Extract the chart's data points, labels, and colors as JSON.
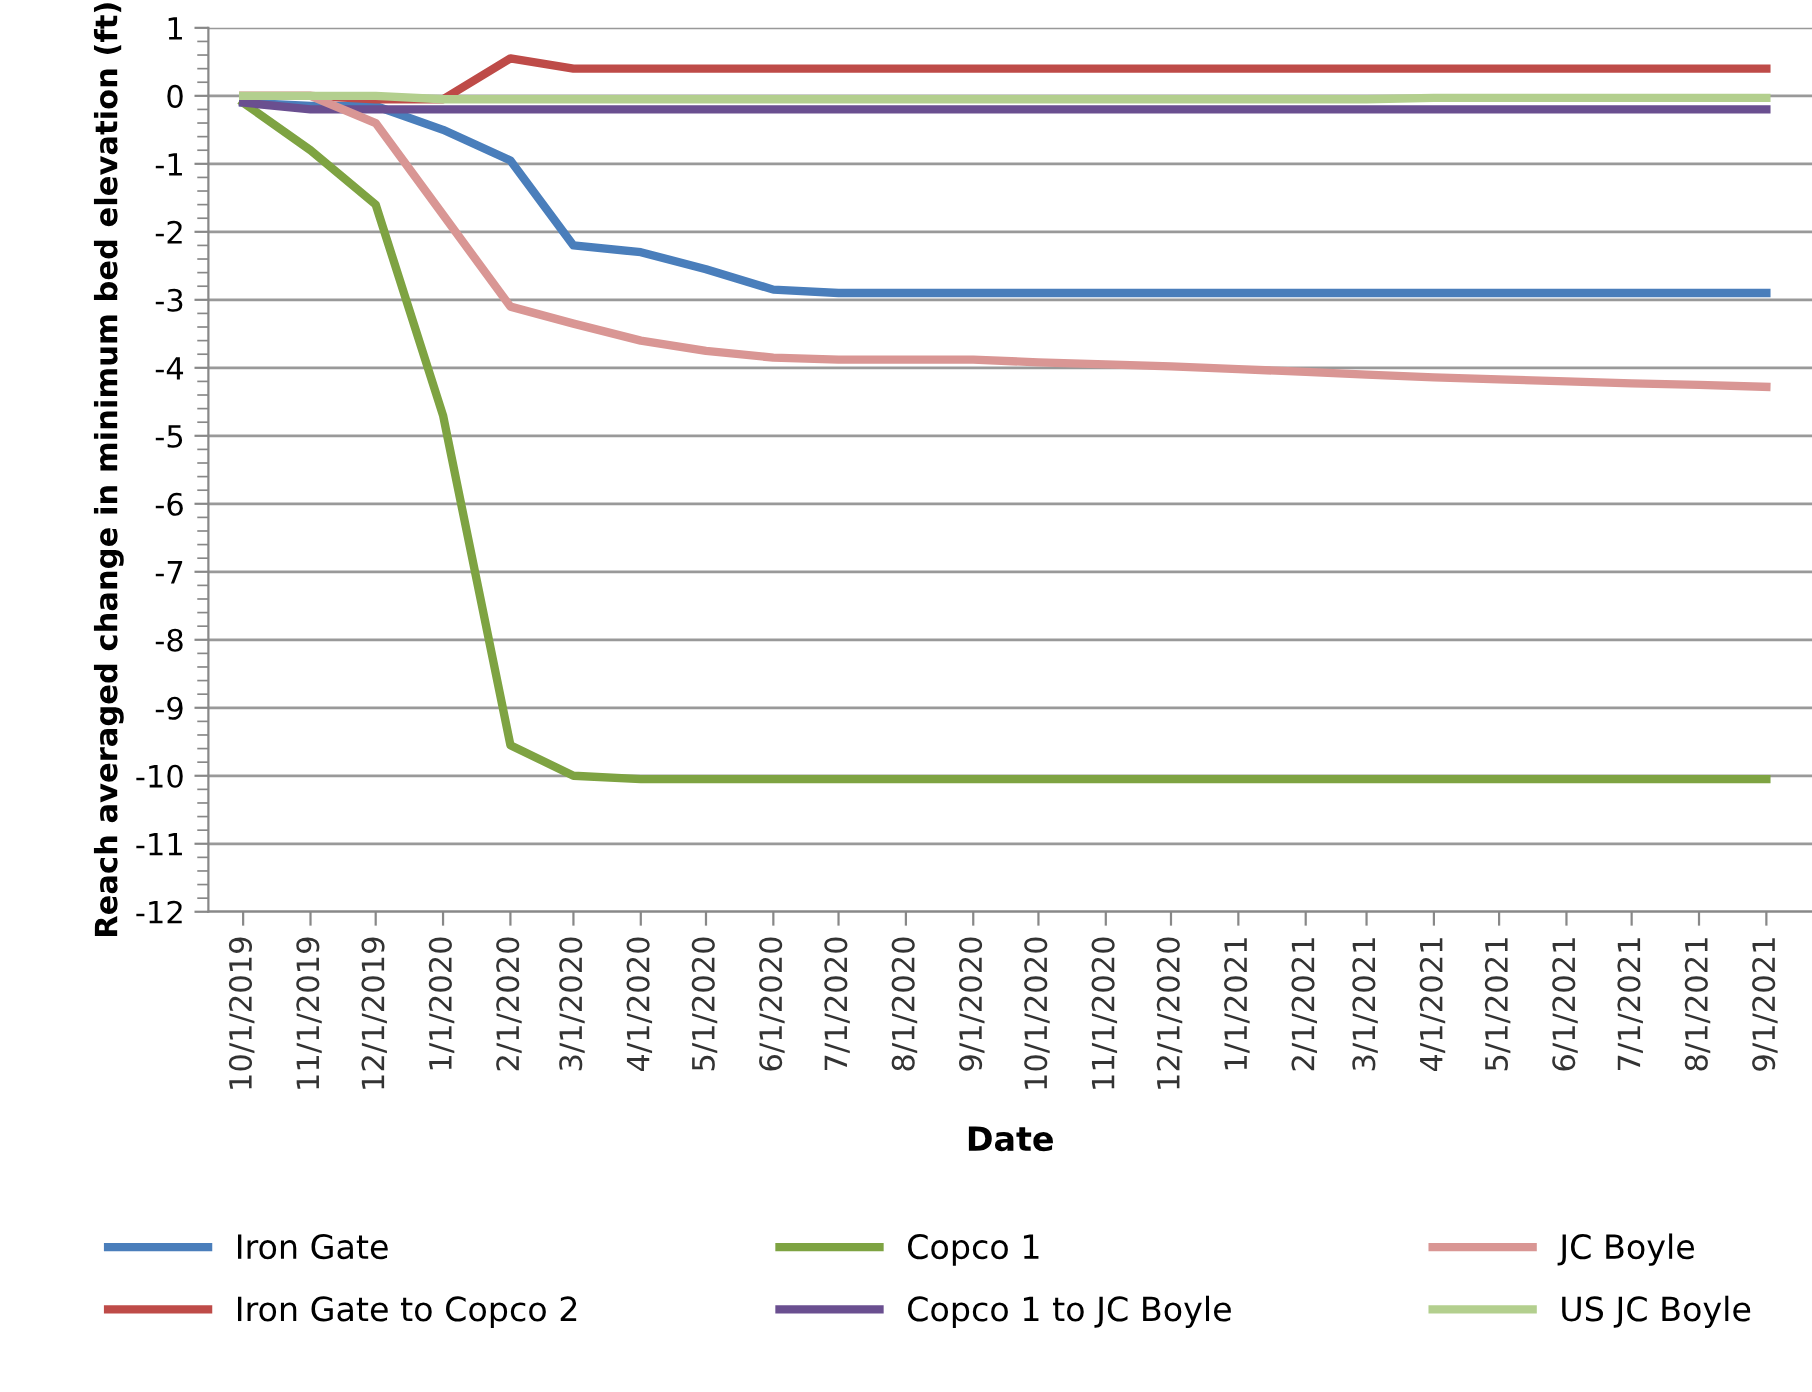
{
  "chart_data": {
    "type": "line",
    "xlabel": "Date",
    "ylabel": "Reach averaged change in minimum bed elevation (ft)",
    "x": [
      "2019-10-01",
      "2019-11-01",
      "2019-12-01",
      "2020-01-01",
      "2020-02-01",
      "2020-03-01",
      "2020-04-01",
      "2020-05-01",
      "2020-06-01",
      "2020-07-01",
      "2020-08-01",
      "2020-09-01",
      "2020-10-01",
      "2020-11-01",
      "2020-12-01",
      "2021-01-01",
      "2021-02-01",
      "2021-03-01",
      "2021-04-01",
      "2021-05-01",
      "2021-06-01",
      "2021-07-01",
      "2021-08-01",
      "2021-09-01"
    ],
    "series": [
      {
        "name": "Iron Gate",
        "color": "#4a7ebb",
        "values": [
          -0.1,
          -0.15,
          -0.15,
          -0.5,
          -0.95,
          -2.2,
          -2.3,
          -2.55,
          -2.85,
          -2.9,
          -2.9,
          -2.9,
          -2.9,
          -2.9,
          -2.9,
          -2.9,
          -2.9,
          -2.9,
          -2.9,
          -2.9,
          -2.9,
          -2.9,
          -2.9,
          -2.9
        ]
      },
      {
        "name": "Iron Gate to Copco 2",
        "color": "#be4b48",
        "values": [
          0,
          0,
          -0.05,
          -0.05,
          0.55,
          0.4,
          0.4,
          0.4,
          0.4,
          0.4,
          0.4,
          0.4,
          0.4,
          0.4,
          0.4,
          0.4,
          0.4,
          0.4,
          0.4,
          0.4,
          0.4,
          0.4,
          0.4,
          0.4
        ]
      },
      {
        "name": "Copco 1",
        "color": "#7ea342",
        "values": [
          -0.1,
          -0.8,
          -1.6,
          -4.7,
          -9.55,
          -10.0,
          -10.05,
          -10.05,
          -10.05,
          -10.05,
          -10.05,
          -10.05,
          -10.05,
          -10.05,
          -10.05,
          -10.05,
          -10.05,
          -10.05,
          -10.05,
          -10.05,
          -10.05,
          -10.05,
          -10.05,
          -10.05
        ]
      },
      {
        "name": "Copco 1 to JC Boyle",
        "color": "#6a4f90",
        "values": [
          -0.1,
          -0.2,
          -0.2,
          -0.2,
          -0.2,
          -0.2,
          -0.2,
          -0.2,
          -0.2,
          -0.2,
          -0.2,
          -0.2,
          -0.2,
          -0.2,
          -0.2,
          -0.2,
          -0.2,
          -0.2,
          -0.2,
          -0.2,
          -0.2,
          -0.2,
          -0.2,
          -0.2
        ]
      },
      {
        "name": "JC Boyle",
        "color": "#d99694",
        "values": [
          0,
          0,
          -0.4,
          -1.75,
          -3.1,
          -3.35,
          -3.6,
          -3.75,
          -3.85,
          -3.88,
          -3.88,
          -3.88,
          -3.92,
          -3.95,
          -3.98,
          -4.02,
          -4.06,
          -4.1,
          -4.14,
          -4.17,
          -4.2,
          -4.23,
          -4.25,
          -4.28
        ]
      },
      {
        "name": "US JC Boyle",
        "color": "#b3cf8e",
        "values": [
          0,
          0,
          0,
          -0.05,
          -0.05,
          -0.05,
          -0.05,
          -0.05,
          -0.05,
          -0.05,
          -0.05,
          -0.05,
          -0.05,
          -0.05,
          -0.05,
          -0.05,
          -0.05,
          -0.05,
          -0.03,
          -0.03,
          -0.03,
          -0.03,
          -0.03,
          -0.03
        ]
      }
    ],
    "xlim": [
      "2019-09-15",
      "2021-09-22"
    ],
    "xticks": [
      {
        "value": "2019-10-01",
        "label": "10/1/2019"
      },
      {
        "value": "2019-11-01",
        "label": "11/1/2019"
      },
      {
        "value": "2019-12-01",
        "label": "12/1/2019"
      },
      {
        "value": "2020-01-01",
        "label": "1/1/2020"
      },
      {
        "value": "2020-02-01",
        "label": "2/1/2020"
      },
      {
        "value": "2020-03-01",
        "label": "3/1/2020"
      },
      {
        "value": "2020-04-01",
        "label": "4/1/2020"
      },
      {
        "value": "2020-05-01",
        "label": "5/1/2020"
      },
      {
        "value": "2020-06-01",
        "label": "6/1/2020"
      },
      {
        "value": "2020-07-01",
        "label": "7/1/2020"
      },
      {
        "value": "2020-08-01",
        "label": "8/1/2020"
      },
      {
        "value": "2020-09-01",
        "label": "9/1/2020"
      },
      {
        "value": "2020-10-01",
        "label": "10/1/2020"
      },
      {
        "value": "2020-11-01",
        "label": "11/1/2020"
      },
      {
        "value": "2020-12-01",
        "label": "12/1/2020"
      },
      {
        "value": "2021-01-01",
        "label": "1/1/2021"
      },
      {
        "value": "2021-02-01",
        "label": "2/1/2021"
      },
      {
        "value": "2021-03-01",
        "label": "3/1/2021"
      },
      {
        "value": "2021-04-01",
        "label": "4/1/2021"
      },
      {
        "value": "2021-05-01",
        "label": "5/1/2021"
      },
      {
        "value": "2021-06-01",
        "label": "6/1/2021"
      },
      {
        "value": "2021-07-01",
        "label": "7/1/2021"
      },
      {
        "value": "2021-08-01",
        "label": "8/1/2021"
      },
      {
        "value": "2021-09-01",
        "label": "9/1/2021"
      }
    ],
    "ylim": [
      -12,
      1
    ],
    "yticks": [
      -12,
      -11,
      -10,
      -9,
      -8,
      -7,
      -6,
      -5,
      -4,
      -3,
      -2,
      -1,
      0,
      1
    ],
    "grid": "y",
    "legend": "bottom",
    "marker": "none",
    "line_style": "solid"
  }
}
